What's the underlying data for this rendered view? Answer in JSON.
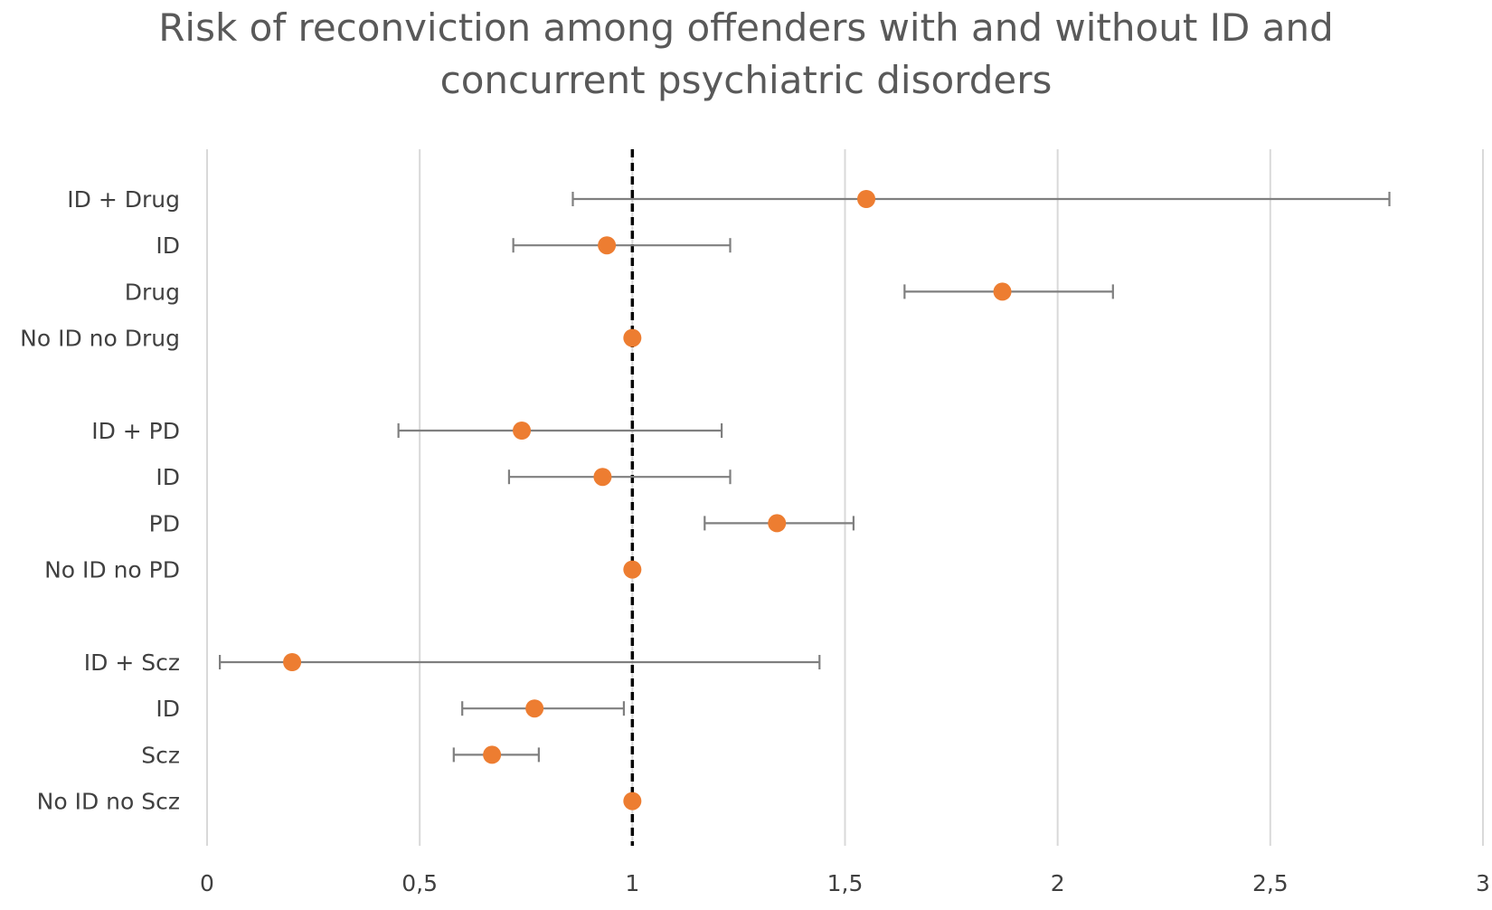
{
  "chart_data": {
    "type": "forest",
    "title_lines": [
      "Risk of reconviction among offenders with and without ID and",
      "concurrent psychiatric disorders"
    ],
    "xlim": [
      0,
      3
    ],
    "x_ticks": [
      0,
      0.5,
      1,
      1.5,
      2,
      2.5,
      3
    ],
    "x_tick_labels": [
      "0",
      "0,5",
      "1",
      "1,5",
      "2",
      "2,5",
      "3"
    ],
    "grid": "vertical",
    "reference_line": 1,
    "marker_color": "#ED7D31",
    "errorbar_color": "#7F7F7F",
    "groups": [
      {
        "rows": [
          {
            "label": "ID + Drug",
            "estimate": 1.55,
            "lower": 0.86,
            "upper": 2.78
          },
          {
            "label": "ID",
            "estimate": 0.94,
            "lower": 0.72,
            "upper": 1.23
          },
          {
            "label": "Drug",
            "estimate": 1.87,
            "lower": 1.64,
            "upper": 2.13
          },
          {
            "label": "No ID no Drug",
            "estimate": 1.0,
            "lower": 1.0,
            "upper": 1.0
          }
        ]
      },
      {
        "rows": [
          {
            "label": "ID + PD",
            "estimate": 0.74,
            "lower": 0.45,
            "upper": 1.21
          },
          {
            "label": "ID",
            "estimate": 0.93,
            "lower": 0.71,
            "upper": 1.23
          },
          {
            "label": "PD",
            "estimate": 1.34,
            "lower": 1.17,
            "upper": 1.52
          },
          {
            "label": "No ID no PD",
            "estimate": 1.0,
            "lower": 1.0,
            "upper": 1.0
          }
        ]
      },
      {
        "rows": [
          {
            "label": "ID + Scz",
            "estimate": 0.2,
            "lower": 0.03,
            "upper": 1.44
          },
          {
            "label": "ID",
            "estimate": 0.77,
            "lower": 0.6,
            "upper": 0.98
          },
          {
            "label": "Scz",
            "estimate": 0.67,
            "lower": 0.58,
            "upper": 0.78
          },
          {
            "label": "No ID no Scz",
            "estimate": 1.0,
            "lower": 1.0,
            "upper": 1.0
          }
        ]
      }
    ]
  }
}
